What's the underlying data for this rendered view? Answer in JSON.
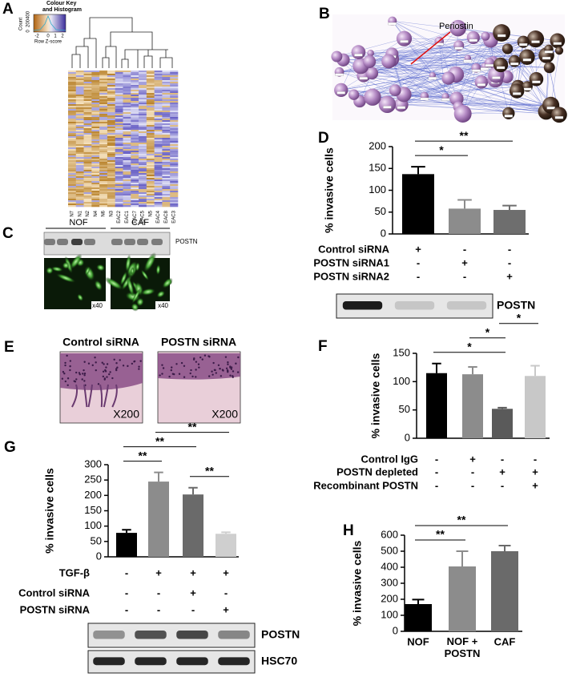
{
  "panel_labels": [
    "A",
    "B",
    "C",
    "D",
    "E",
    "F",
    "G",
    "H"
  ],
  "panel_a": {
    "key_title": [
      "Colour Key",
      "and Histogram"
    ],
    "count_label": "Count",
    "count_ticks": [
      "0",
      "200",
      "400"
    ],
    "z_ticks": [
      "-2",
      "0",
      "1",
      "2"
    ],
    "z_label": "Row Z-score",
    "samples": [
      "N7",
      "N1",
      "N2",
      "N4",
      "N6",
      "N3",
      "EAC2",
      "EAC1",
      "EAC7",
      "EAC5",
      "N5",
      "EAC4",
      "EAC8",
      "EAC3"
    ]
  },
  "panel_b": {
    "annotation": "Periostin"
  },
  "panel_c": {
    "groups": [
      "NOF",
      "CAF"
    ],
    "blot_label": "POSTN",
    "magnification": [
      "x40",
      "x40"
    ]
  },
  "panel_e": {
    "titles": [
      "Control siRNA",
      "POSTN siRNA"
    ],
    "magnification": [
      "X200",
      "X200"
    ]
  },
  "chart_data": [
    {
      "type": "bar",
      "panel": "D",
      "ylabel": "% invasive cells",
      "ylim": [
        0,
        200
      ],
      "yticks": [
        0,
        50,
        100,
        150,
        200
      ],
      "values": [
        137,
        58,
        55
      ],
      "errors": [
        17,
        20,
        10
      ],
      "colors": [
        "#000000",
        "#8c8c8c",
        "#6e6e6e"
      ],
      "conditions": [
        {
          "label": "Control siRNA",
          "marks": [
            "+",
            "-",
            "-"
          ]
        },
        {
          "label": "POSTN siRNA1",
          "marks": [
            "-",
            "+",
            "-"
          ]
        },
        {
          "label": "POSTN siRNA2",
          "marks": [
            "-",
            "-",
            "+"
          ]
        }
      ],
      "significance": [
        {
          "between": [
            0,
            1
          ],
          "label": "*"
        },
        {
          "between": [
            0,
            2
          ],
          "label": "**"
        }
      ],
      "blots": [
        "POSTN"
      ]
    },
    {
      "type": "bar",
      "panel": "F",
      "ylabel": "% invasive cells",
      "ylim": [
        0,
        150
      ],
      "yticks": [
        0,
        50,
        100,
        150
      ],
      "values": [
        115,
        113,
        52,
        110
      ],
      "errors": [
        17,
        13,
        2,
        18
      ],
      "colors": [
        "#000000",
        "#8c8c8c",
        "#5a5a5a",
        "#c8c8c8"
      ],
      "conditions": [
        {
          "label": "Control IgG",
          "marks": [
            "-",
            "+",
            "-",
            "-"
          ]
        },
        {
          "label": "POSTN depleted",
          "marks": [
            "-",
            "-",
            "+",
            "+"
          ]
        },
        {
          "label": "Recombinant POSTN",
          "marks": [
            "-",
            "-",
            "-",
            "+"
          ]
        }
      ],
      "significance": [
        {
          "between": [
            0,
            2
          ],
          "label": "*"
        },
        {
          "between": [
            1,
            2
          ],
          "label": "*"
        },
        {
          "between": [
            2,
            3
          ],
          "label": "*"
        }
      ]
    },
    {
      "type": "bar",
      "panel": "G",
      "ylabel": "% invasive cells",
      "ylim": [
        0,
        300
      ],
      "yticks": [
        0,
        50,
        100,
        150,
        200,
        250,
        300
      ],
      "values": [
        78,
        245,
        203,
        75
      ],
      "errors": [
        10,
        30,
        22,
        5
      ],
      "colors": [
        "#000000",
        "#8c8c8c",
        "#6a6a6a",
        "#cfcfcf"
      ],
      "conditions": [
        {
          "label": "TGF-β",
          "marks": [
            "-",
            "+",
            "+",
            "+"
          ]
        },
        {
          "label": "Control siRNA",
          "marks": [
            "-",
            "-",
            "+",
            "-"
          ]
        },
        {
          "label": "POSTN siRNA",
          "marks": [
            "-",
            "-",
            "-",
            "+"
          ]
        }
      ],
      "significance": [
        {
          "between": [
            0,
            1
          ],
          "label": "**"
        },
        {
          "between": [
            2,
            3
          ],
          "label": "**"
        },
        {
          "between": [
            0,
            2
          ],
          "label": "**"
        },
        {
          "between": [
            1,
            3
          ],
          "label": "**"
        }
      ],
      "blots": [
        "POSTN",
        "HSC70"
      ]
    },
    {
      "type": "bar",
      "panel": "H",
      "ylabel": "% invasive cells",
      "ylim": [
        0,
        600
      ],
      "yticks": [
        0,
        100,
        200,
        300,
        400,
        500,
        600
      ],
      "categories": [
        "NOF",
        "NOF + POSTN",
        "CAF"
      ],
      "values": [
        170,
        405,
        500
      ],
      "errors": [
        28,
        95,
        35
      ],
      "colors": [
        "#000000",
        "#8c8c8c",
        "#6a6a6a"
      ],
      "significance": [
        {
          "between": [
            0,
            1
          ],
          "label": "**"
        },
        {
          "between": [
            0,
            2
          ],
          "label": "**"
        }
      ]
    }
  ]
}
